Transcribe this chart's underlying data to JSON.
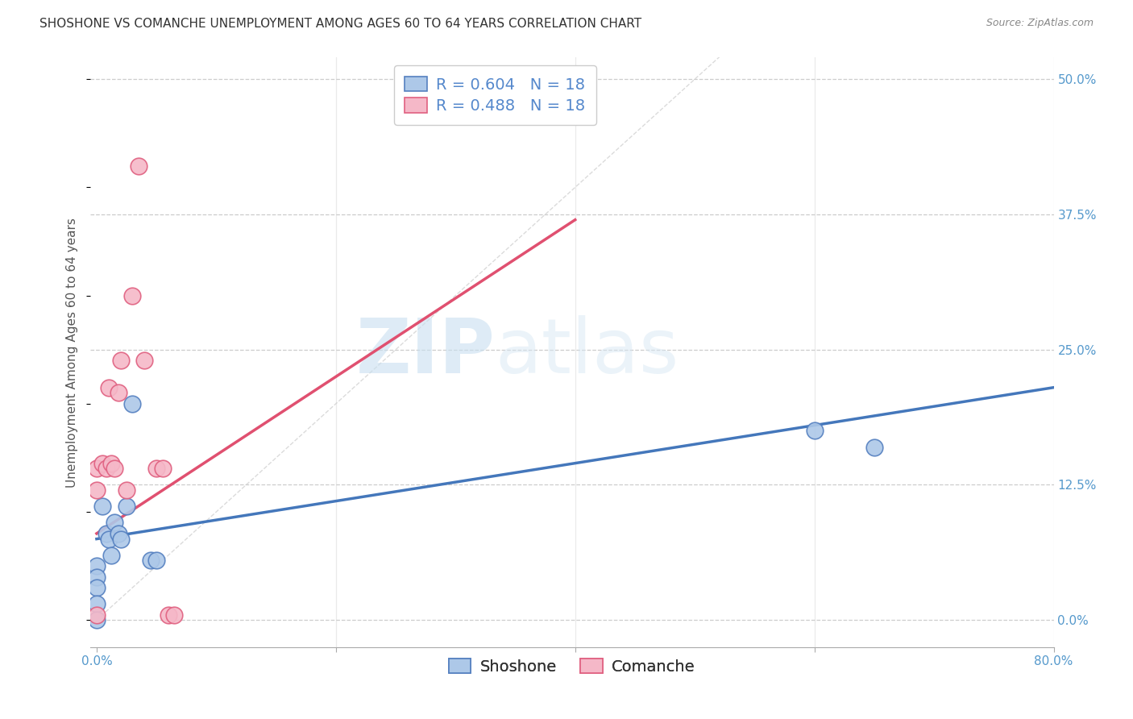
{
  "title": "SHOSHONE VS COMANCHE UNEMPLOYMENT AMONG AGES 60 TO 64 YEARS CORRELATION CHART",
  "source": "Source: ZipAtlas.com",
  "ylabel": "Unemployment Among Ages 60 to 64 years",
  "xlim": [
    -0.005,
    0.8
  ],
  "ylim": [
    -0.025,
    0.52
  ],
  "yticks": [
    0.0,
    0.125,
    0.25,
    0.375,
    0.5
  ],
  "ytick_labels_right": [
    "0.0%",
    "12.5%",
    "25.0%",
    "37.5%",
    "50.0%"
  ],
  "grid_color": "#cccccc",
  "background_color": "#ffffff",
  "watermark_zip": "ZIP",
  "watermark_atlas": "atlas",
  "shoshone_color": "#adc8e8",
  "comanche_color": "#f5b8c8",
  "shoshone_edge_color": "#5580c0",
  "comanche_edge_color": "#e06080",
  "shoshone_line_color": "#4477bb",
  "comanche_line_color": "#e05070",
  "diagonal_color": "#cccccc",
  "shoshone_R": 0.604,
  "shoshone_N": 18,
  "comanche_R": 0.488,
  "comanche_N": 18,
  "shoshone_x": [
    0.0,
    0.0,
    0.0,
    0.0,
    0.0,
    0.005,
    0.008,
    0.01,
    0.012,
    0.015,
    0.018,
    0.02,
    0.025,
    0.03,
    0.045,
    0.05,
    0.6,
    0.65
  ],
  "shoshone_y": [
    0.05,
    0.04,
    0.03,
    0.015,
    0.0,
    0.105,
    0.08,
    0.075,
    0.06,
    0.09,
    0.08,
    0.075,
    0.105,
    0.2,
    0.055,
    0.055,
    0.175,
    0.16
  ],
  "comanche_x": [
    0.0,
    0.0,
    0.0,
    0.005,
    0.008,
    0.01,
    0.012,
    0.015,
    0.018,
    0.02,
    0.025,
    0.03,
    0.035,
    0.04,
    0.05,
    0.055,
    0.06,
    0.065
  ],
  "comanche_y": [
    0.14,
    0.12,
    0.005,
    0.145,
    0.14,
    0.215,
    0.145,
    0.14,
    0.21,
    0.24,
    0.12,
    0.3,
    0.42,
    0.24,
    0.14,
    0.14,
    0.005,
    0.005
  ],
  "shoshone_line_x": [
    0.0,
    0.8
  ],
  "shoshone_line_y": [
    0.075,
    0.215
  ],
  "comanche_line_x": [
    0.0,
    0.4
  ],
  "comanche_line_y": [
    0.08,
    0.37
  ],
  "legend_fontsize": 14,
  "title_fontsize": 11,
  "axis_label_fontsize": 11,
  "tick_fontsize": 11,
  "scatter_size": 220
}
